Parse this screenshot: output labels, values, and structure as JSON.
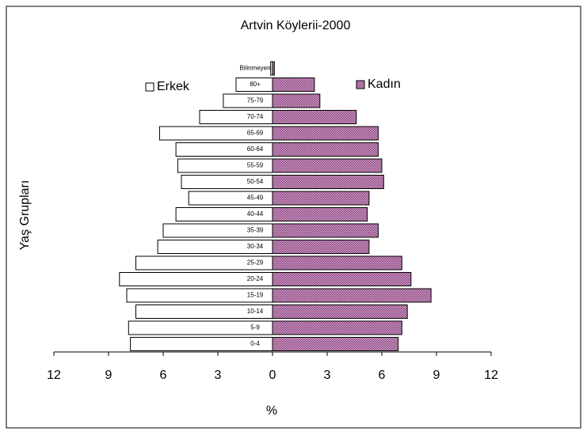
{
  "chart_data": {
    "type": "pyramid",
    "title": "Artvin Köylerii-2000",
    "x_label": "%",
    "y_label": "Yaş Grupları",
    "categories": [
      "0-4",
      "5-9",
      "10-14",
      "15-19",
      "20-24",
      "25-29",
      "30-34",
      "35-39",
      "40-44",
      "45-49",
      "50-54",
      "55-59",
      "60-64",
      "65-69",
      "70-74",
      "75-79",
      "80+",
      "Bilinmeyen"
    ],
    "series": [
      {
        "name": "Erkek",
        "color": "#ffffff",
        "values": [
          -7.8,
          -7.9,
          -7.5,
          -8.0,
          -8.4,
          -7.5,
          -6.3,
          -6.0,
          -5.3,
          -4.6,
          -5.0,
          -5.2,
          -5.3,
          -6.2,
          -4.0,
          -2.7,
          -2.0,
          -0.1
        ]
      },
      {
        "name": "Kadın",
        "color": "#d9a3d0",
        "values": [
          6.9,
          7.1,
          7.4,
          8.7,
          7.6,
          7.1,
          5.3,
          5.8,
          5.2,
          5.3,
          6.1,
          6.0,
          5.8,
          5.8,
          4.6,
          2.6,
          2.3,
          0.1
        ]
      }
    ],
    "xlim": [
      -12,
      12
    ],
    "xticks": [
      {
        "value": -12,
        "label": "12"
      },
      {
        "value": -9,
        "label": "9"
      },
      {
        "value": -6,
        "label": "6"
      },
      {
        "value": -3,
        "label": "3"
      },
      0,
      3,
      6,
      9,
      12
    ],
    "grid": false
  }
}
